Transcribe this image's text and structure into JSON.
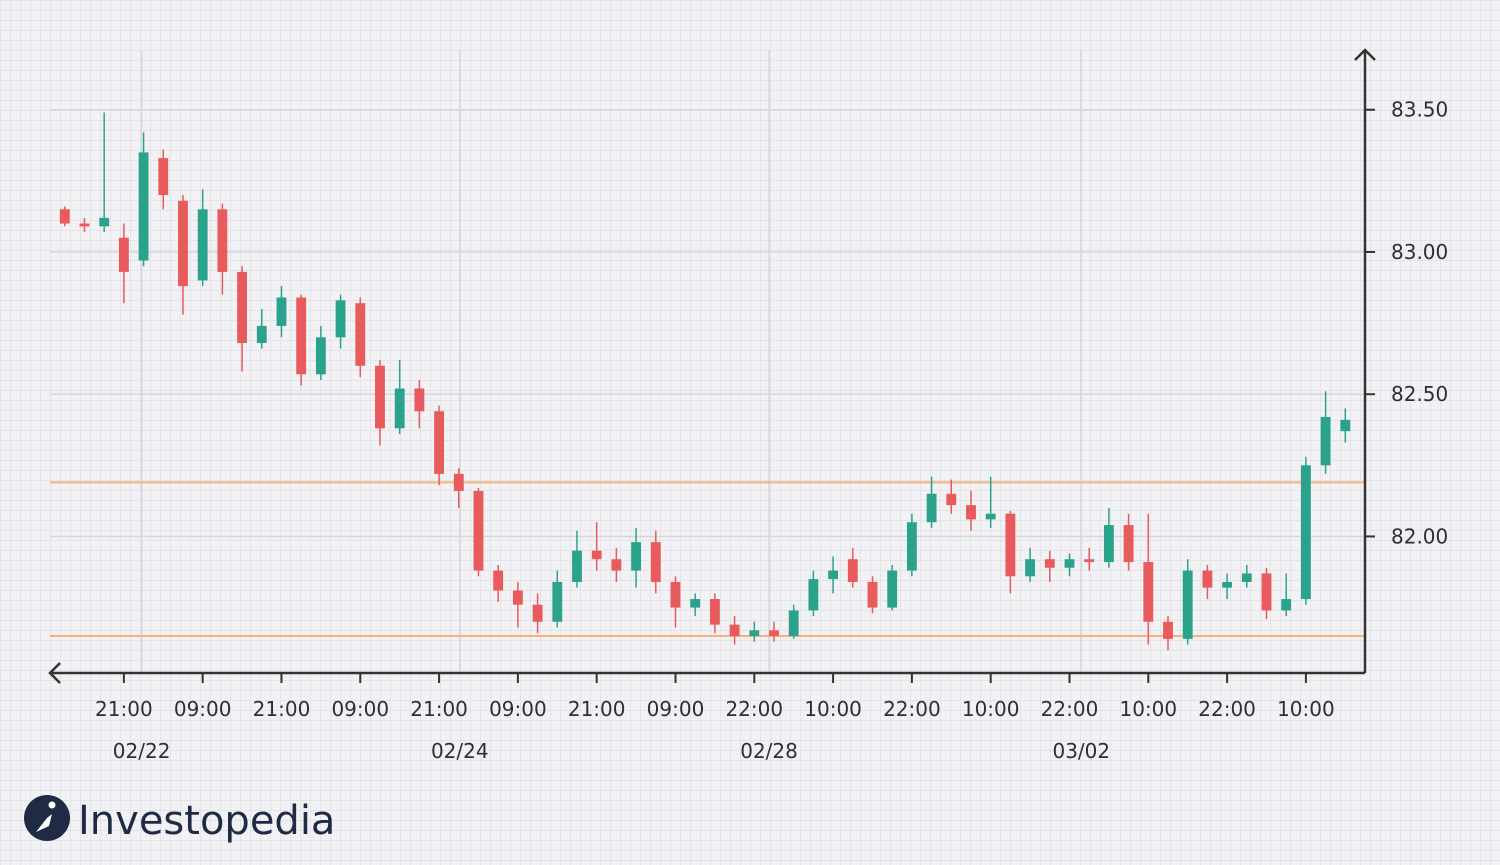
{
  "chart_data": {
    "type": "candlestick",
    "x": [
      0,
      1,
      2,
      3,
      4,
      5,
      6,
      7,
      8,
      9,
      10,
      11,
      12,
      13,
      14,
      15,
      16,
      17,
      18,
      19,
      20,
      21,
      22,
      23,
      24,
      25,
      26,
      27,
      28,
      29,
      30,
      31,
      32,
      33,
      34,
      35,
      36,
      37,
      38,
      39,
      40,
      41,
      42,
      43,
      44,
      45,
      46,
      47,
      48,
      49,
      50,
      51,
      52,
      53,
      54,
      55,
      56,
      57,
      58,
      59,
      60,
      61,
      62,
      63,
      64,
      65
    ],
    "open": [
      83.15,
      83.1,
      83.09,
      83.05,
      82.97,
      83.33,
      83.18,
      82.9,
      83.15,
      82.93,
      82.68,
      82.74,
      82.84,
      82.57,
      82.7,
      82.82,
      82.6,
      82.38,
      82.52,
      82.44,
      82.22,
      82.16,
      81.88,
      81.81,
      81.76,
      81.7,
      81.84,
      81.95,
      81.92,
      81.88,
      81.98,
      81.84,
      81.75,
      81.78,
      81.69,
      81.65,
      81.67,
      81.65,
      81.74,
      81.85,
      81.92,
      81.84,
      81.75,
      81.88,
      82.05,
      82.15,
      82.11,
      82.06,
      82.08,
      81.86,
      81.92,
      81.89,
      81.92,
      81.91,
      82.04,
      81.91,
      81.7,
      81.64,
      81.88,
      81.82,
      81.84,
      81.87,
      81.74,
      81.78,
      82.25,
      82.37
    ],
    "high": [
      83.16,
      83.12,
      83.49,
      83.1,
      83.42,
      83.36,
      83.2,
      83.22,
      83.17,
      82.95,
      82.8,
      82.88,
      82.85,
      82.74,
      82.85,
      82.84,
      82.62,
      82.62,
      82.55,
      82.46,
      82.24,
      82.17,
      81.9,
      81.84,
      81.8,
      81.88,
      82.02,
      82.05,
      81.96,
      82.03,
      82.02,
      81.86,
      81.8,
      81.8,
      81.72,
      81.7,
      81.7,
      81.76,
      81.88,
      81.93,
      81.96,
      81.86,
      81.9,
      82.08,
      82.21,
      82.2,
      82.16,
      82.21,
      82.09,
      81.96,
      81.95,
      81.94,
      81.96,
      82.1,
      82.08,
      82.08,
      81.72,
      81.92,
      81.9,
      81.87,
      81.9,
      81.89,
      81.87,
      82.28,
      82.51,
      82.45
    ],
    "low": [
      83.09,
      83.07,
      83.07,
      82.82,
      82.95,
      83.15,
      82.78,
      82.88,
      82.85,
      82.58,
      82.66,
      82.7,
      82.53,
      82.55,
      82.66,
      82.56,
      82.32,
      82.36,
      82.38,
      82.18,
      82.1,
      81.86,
      81.77,
      81.68,
      81.66,
      81.68,
      81.82,
      81.88,
      81.84,
      81.82,
      81.8,
      81.68,
      81.72,
      81.66,
      81.62,
      81.63,
      81.63,
      81.64,
      81.72,
      81.8,
      81.82,
      81.73,
      81.74,
      81.86,
      82.03,
      82.08,
      82.02,
      82.03,
      81.8,
      81.84,
      81.84,
      81.86,
      81.88,
      81.89,
      81.88,
      81.62,
      81.6,
      81.62,
      81.78,
      81.78,
      81.82,
      81.71,
      81.72,
      81.76,
      82.22,
      82.33
    ],
    "close": [
      83.1,
      83.09,
      83.12,
      82.93,
      83.35,
      83.2,
      82.88,
      83.15,
      82.93,
      82.68,
      82.74,
      82.84,
      82.57,
      82.7,
      82.83,
      82.6,
      82.38,
      82.52,
      82.44,
      82.22,
      82.16,
      81.88,
      81.81,
      81.76,
      81.7,
      81.84,
      81.95,
      81.92,
      81.88,
      81.98,
      81.84,
      81.75,
      81.78,
      81.69,
      81.65,
      81.67,
      81.65,
      81.74,
      81.85,
      81.88,
      81.84,
      81.75,
      81.88,
      82.05,
      82.15,
      82.11,
      82.06,
      82.08,
      81.86,
      81.92,
      81.89,
      81.92,
      81.91,
      82.04,
      81.91,
      81.7,
      81.64,
      81.88,
      81.82,
      81.84,
      81.87,
      81.74,
      81.78,
      82.25,
      82.42,
      82.41
    ],
    "up_color": "#2ba38c",
    "down_color": "#e85a5b",
    "xlim": [
      -0.75,
      66
    ],
    "xticks": [
      {
        "value": 3,
        "label": "21:00"
      },
      {
        "value": 7,
        "label": "09:00"
      },
      {
        "value": 11,
        "label": "21:00"
      },
      {
        "value": 15,
        "label": "09:00"
      },
      {
        "value": 19,
        "label": "21:00"
      },
      {
        "value": 23,
        "label": "09:00"
      },
      {
        "value": 27,
        "label": "21:00"
      },
      {
        "value": 31,
        "label": "09:00"
      },
      {
        "value": 35,
        "label": "22:00"
      },
      {
        "value": 39,
        "label": "10:00"
      },
      {
        "value": 43,
        "label": "22:00"
      },
      {
        "value": 47,
        "label": "10:00"
      },
      {
        "value": 51,
        "label": "22:00"
      },
      {
        "value": 55,
        "label": "10:00"
      },
      {
        "value": 59,
        "label": "22:00"
      },
      {
        "value": 63,
        "label": "10:00"
      }
    ],
    "date_ticks": [
      {
        "value": 3.9,
        "label": "02/22"
      },
      {
        "value": 20.05,
        "label": "02/24"
      },
      {
        "value": 35.75,
        "label": "02/28"
      },
      {
        "value": 51.6,
        "label": "03/02"
      }
    ],
    "ylim": [
      81.52,
      83.71
    ],
    "yticks": [
      {
        "value": 82,
        "label": "82.00"
      },
      {
        "value": 82.5,
        "label": "82.50"
      },
      {
        "value": 83,
        "label": "83.00"
      },
      {
        "value": 83.5,
        "label": "83.50"
      }
    ],
    "hlines": [
      82.19,
      81.65
    ],
    "hline_color": "#f5b27a",
    "grid": true
  },
  "brand": "Investopedia"
}
